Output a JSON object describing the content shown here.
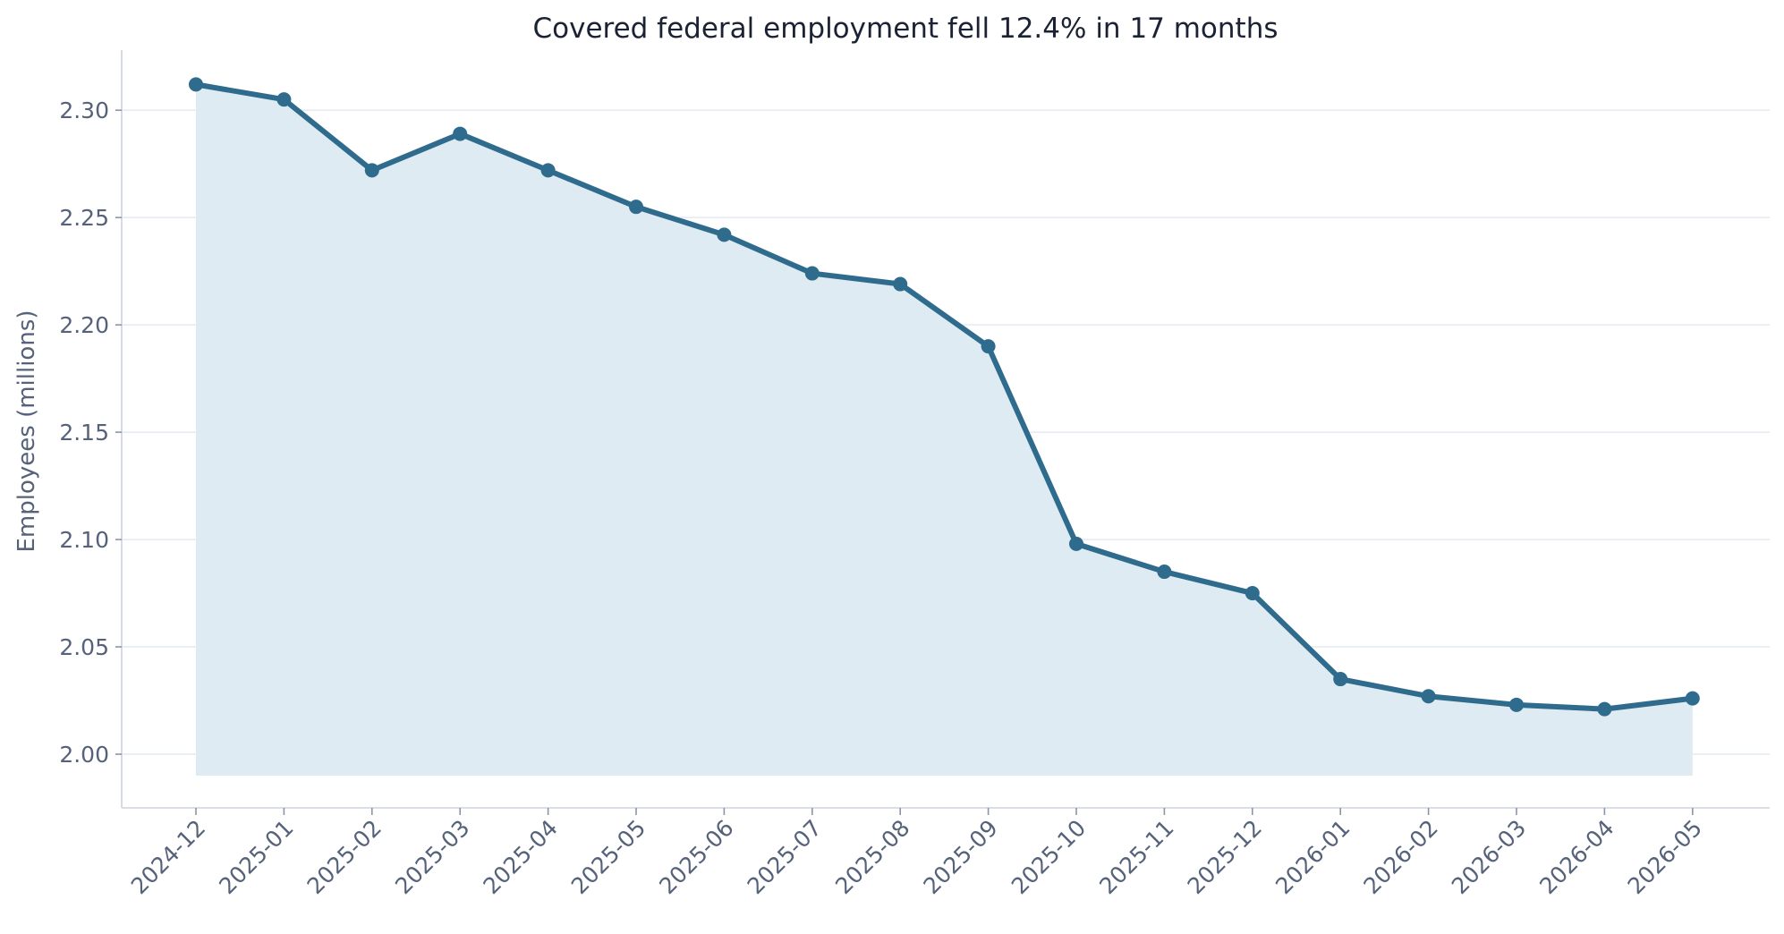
{
  "colors": {
    "line": "#2f6b8c",
    "fill": "#deebf2"
  },
  "chart_data": {
    "type": "area",
    "title": "Covered federal employment fell 12.4% in 17 months",
    "xlabel": "",
    "ylabel": "Employees (millions)",
    "ylim": [
      1.975,
      2.328
    ],
    "fill_baseline": 1.99,
    "grid": "horizontal",
    "y_ticks": [
      2.0,
      2.05,
      2.1,
      2.15,
      2.2,
      2.25,
      2.3
    ],
    "y_tick_labels": [
      "2.00",
      "2.05",
      "2.10",
      "2.15",
      "2.20",
      "2.25",
      "2.30"
    ],
    "categories": [
      "2024-12",
      "2025-01",
      "2025-02",
      "2025-03",
      "2025-04",
      "2025-05",
      "2025-06",
      "2025-07",
      "2025-08",
      "2025-09",
      "2025-10",
      "2025-11",
      "2025-12",
      "2026-01",
      "2026-02",
      "2026-03",
      "2026-04",
      "2026-05"
    ],
    "values": [
      2.312,
      2.305,
      2.272,
      2.289,
      2.272,
      2.255,
      2.242,
      2.224,
      2.219,
      2.19,
      2.098,
      2.085,
      2.075,
      2.035,
      2.027,
      2.023,
      2.021,
      2.026
    ]
  }
}
